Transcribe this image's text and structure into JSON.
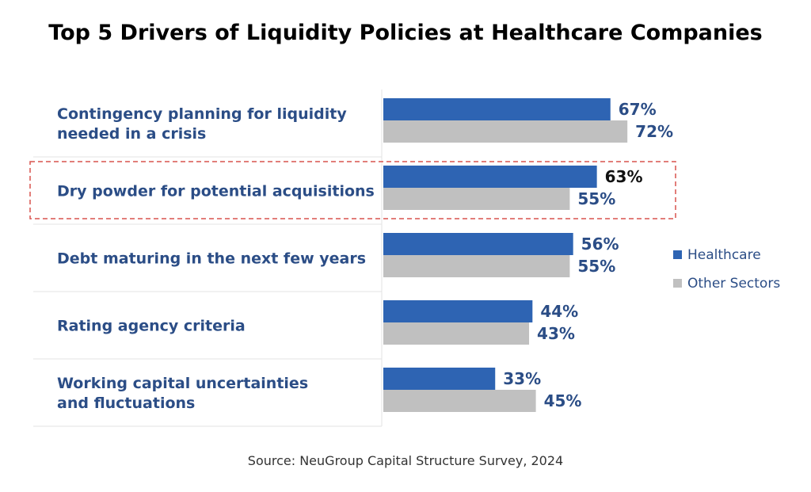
{
  "chart_data": {
    "type": "bar",
    "orientation": "horizontal",
    "title": "Top 5 Drivers of Liquidity Policies at Healthcare Companies",
    "categories": [
      [
        "Contingency planning for liquidity",
        "needed in a crisis"
      ],
      [
        "Dry powder for potential acquisitions"
      ],
      [
        "Debt maturing in the next few years"
      ],
      [
        "Rating agency criteria"
      ],
      [
        "Working capital uncertainties",
        "and fluctuations"
      ]
    ],
    "series": [
      {
        "name": "Healthcare",
        "color": "#2e64b3",
        "values": [
          67,
          63,
          56,
          44,
          33
        ],
        "labels": [
          "67%",
          "63%",
          "56%",
          "44%",
          "33%"
        ]
      },
      {
        "name": "Other Sectors",
        "color": "#c0c0c0",
        "values": [
          72,
          55,
          55,
          43,
          45
        ],
        "labels": [
          "72%",
          "55%",
          "55%",
          "43%",
          "45%"
        ]
      }
    ],
    "xlim": [
      0,
      100
    ],
    "highlighted_category_index": 1,
    "legend_position": "right",
    "source": "Source: NeuGroup Capital Structure Survey, 2024"
  }
}
